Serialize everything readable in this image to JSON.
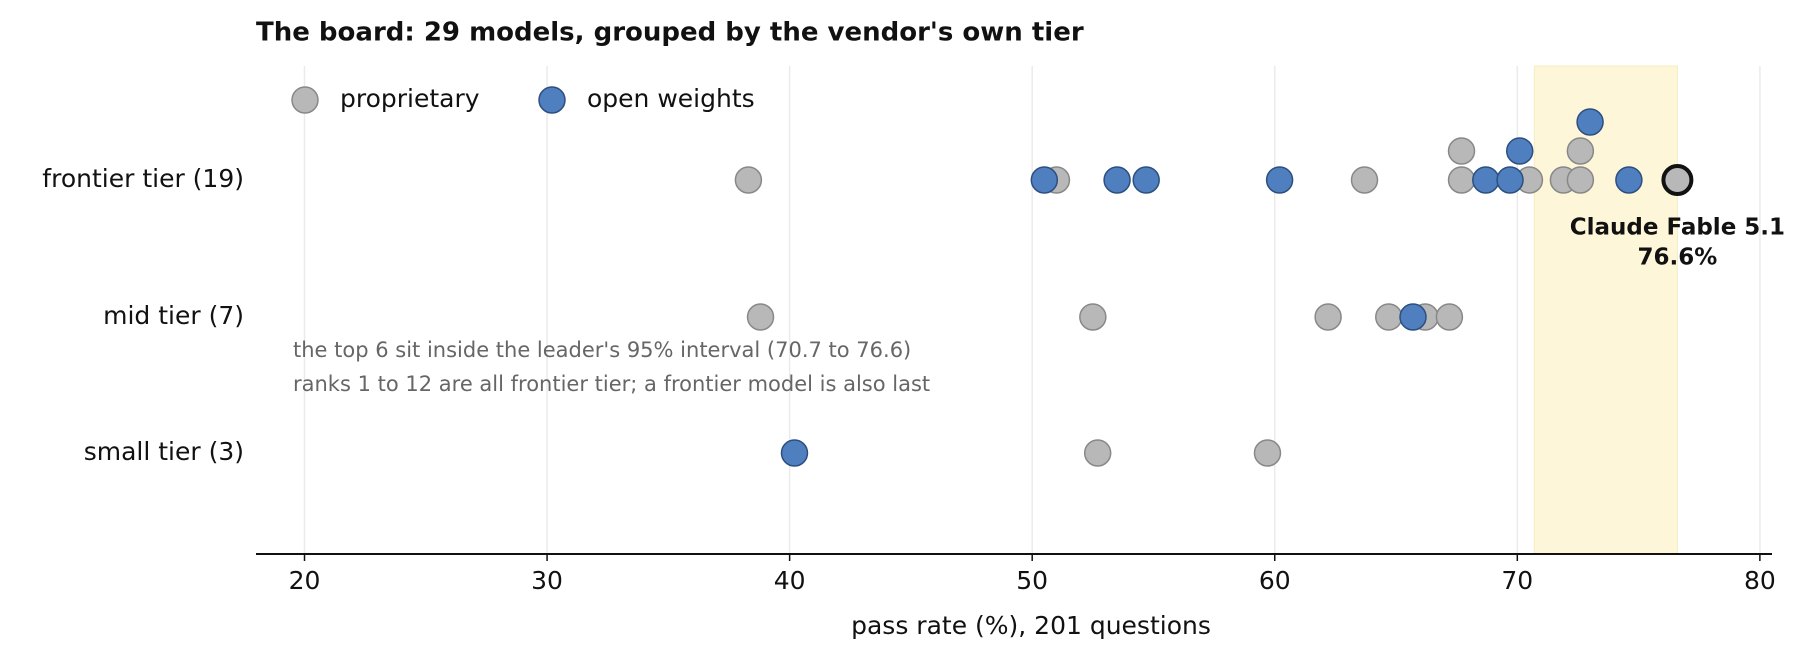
{
  "chart_data": {
    "type": "strip",
    "title": "The board: 29 models, grouped by the vendor's own tier",
    "xlabel": "pass rate (%), 201 questions",
    "categories": [
      "frontier tier (19)",
      "mid tier (7)",
      "small tier (3)"
    ],
    "series": [
      {
        "name": "proprietary",
        "color": "#b8b8b8",
        "values": [
          [
            38.3,
            51.0,
            63.7,
            67.7,
            67.7,
            70.5,
            71.9,
            72.6,
            72.6,
            76.6
          ],
          [
            38.8,
            52.5,
            62.2,
            64.7,
            66.2,
            67.2
          ],
          [
            52.7,
            59.7
          ]
        ]
      },
      {
        "name": "open weights",
        "color": "#4f7fbf",
        "values": [
          [
            50.5,
            53.5,
            54.7,
            60.2,
            68.7,
            69.7,
            70.1,
            73.0,
            74.6
          ],
          [
            65.7
          ],
          [
            40.2
          ]
        ]
      }
    ],
    "highlight": {
      "name": "Claude Fable 5.1",
      "value": 76.6,
      "label": "76.6%"
    },
    "interval": [
      70.7,
      76.6
    ],
    "notes": [
      "the top 6 sit inside the leader's 95% interval (70.7 to 76.6)",
      "ranks 1 to 12 are all frontier tier; a frontier model is also last"
    ],
    "xlim": [
      18,
      80.5
    ],
    "xticks": [
      20,
      30,
      40,
      50,
      60,
      70,
      80
    ],
    "grid": true
  }
}
